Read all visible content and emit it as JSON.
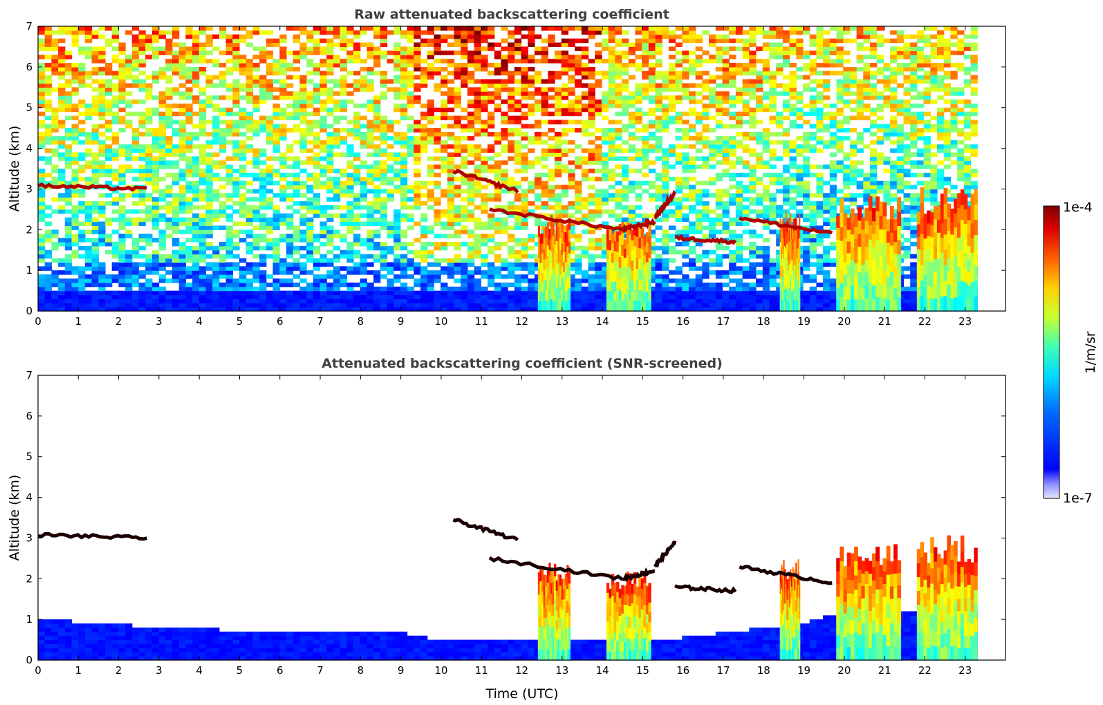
{
  "chart_data": [
    {
      "type": "heatmap",
      "title": "Raw attenuated backscattering coefficient",
      "xlabel": "",
      "ylabel": "Altitude (km)",
      "xlim": [
        0,
        24
      ],
      "ylim": [
        0,
        7
      ],
      "x_ticks": [
        "0",
        "1",
        "2",
        "3",
        "4",
        "5",
        "6",
        "7",
        "8",
        "9",
        "10",
        "11",
        "12",
        "13",
        "14",
        "15",
        "16",
        "17",
        "18",
        "19",
        "20",
        "21",
        "22",
        "23"
      ],
      "y_ticks": [
        "0",
        "1",
        "2",
        "3",
        "4",
        "5",
        "6",
        "7"
      ],
      "data_end_hour": 23.3,
      "features": {
        "cloud_layers_km": [
          {
            "start": 0.0,
            "end": 2.7,
            "alt_start": 3.08,
            "alt_end": 3.0
          },
          {
            "start": 10.3,
            "end": 11.9,
            "alt_start": 3.45,
            "alt_end": 2.95
          },
          {
            "start": 11.2,
            "end": 14.5,
            "alt_start": 2.5,
            "alt_end": 2.0
          },
          {
            "start": 14.5,
            "end": 15.3,
            "alt_start": 2.0,
            "alt_end": 2.2
          },
          {
            "start": 15.3,
            "end": 15.8,
            "alt_start": 2.3,
            "alt_end": 2.9
          },
          {
            "start": 15.8,
            "end": 17.3,
            "alt_start": 1.8,
            "alt_end": 1.7
          },
          {
            "start": 17.4,
            "end": 19.7,
            "alt_start": 2.3,
            "alt_end": 1.9
          }
        ],
        "precipitation_columns": [
          {
            "start": 12.4,
            "end": 13.2,
            "top_km": 2.2
          },
          {
            "start": 14.1,
            "end": 15.2,
            "top_km": 2.0
          },
          {
            "start": 18.4,
            "end": 18.9,
            "top_km": 2.3
          },
          {
            "start": 19.8,
            "end": 21.4,
            "top_km": 2.6
          },
          {
            "start": 21.8,
            "end": 23.3,
            "top_km": 2.8
          }
        ]
      }
    },
    {
      "type": "heatmap",
      "title": "Attenuated backscattering coefficient (SNR-screened)",
      "xlabel": "Time (UTC)",
      "ylabel": "Altitude (km)",
      "xlim": [
        0,
        24
      ],
      "ylim": [
        0,
        7
      ],
      "x_ticks": [
        "0",
        "1",
        "2",
        "3",
        "4",
        "5",
        "6",
        "7",
        "8",
        "9",
        "10",
        "11",
        "12",
        "13",
        "14",
        "15",
        "16",
        "17",
        "18",
        "19",
        "20",
        "21",
        "22",
        "23"
      ],
      "y_ticks": [
        "0",
        "1",
        "2",
        "3",
        "4",
        "5",
        "6",
        "7"
      ],
      "data_end_hour": 23.3,
      "boundary_layer_top_km": [
        {
          "hour": 0,
          "km": 1.0
        },
        {
          "hour": 3,
          "km": 0.8
        },
        {
          "hour": 6,
          "km": 0.7
        },
        {
          "hour": 9.2,
          "km": 0.65
        },
        {
          "hour": 10,
          "km": 0.45
        },
        {
          "hour": 14,
          "km": 0.5
        },
        {
          "hour": 16,
          "km": 0.55
        },
        {
          "hour": 19,
          "km": 0.9
        },
        {
          "hour": 20,
          "km": 1.2
        }
      ]
    }
  ],
  "colorbar": {
    "label": "1/m/sr",
    "max_label": "1e-4",
    "min_label": "1e-7",
    "colormap": "jet",
    "scale": "log"
  }
}
